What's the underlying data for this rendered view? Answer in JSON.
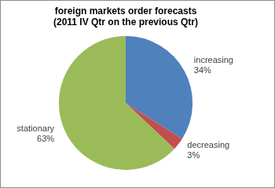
{
  "chart_data": {
    "type": "pie",
    "title": [
      "foreign markets order forecasts",
      "(2011 IV Qtr on the previous Qtr)"
    ],
    "categories": [
      "increasing",
      "decreasing",
      "stationary"
    ],
    "values": [
      34,
      3,
      63
    ],
    "value_labels": [
      "34%",
      "3%",
      "63%"
    ],
    "colors": [
      "#4f81bd",
      "#c0504d",
      "#9bbb59"
    ],
    "data_labels": true
  }
}
